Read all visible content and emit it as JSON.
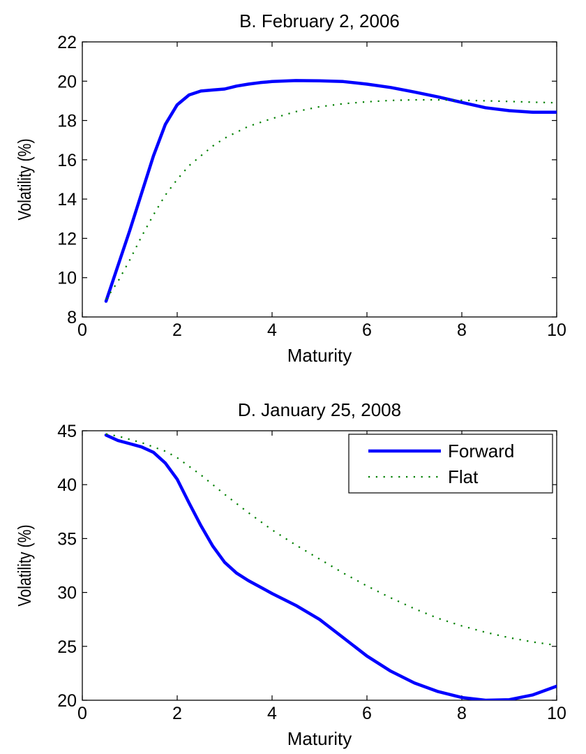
{
  "chart_data": [
    {
      "type": "line",
      "title": "B. February 2, 2006",
      "xlabel": "Maturity",
      "ylabel": "Volatility (%)",
      "xlim": [
        0,
        10
      ],
      "ylim": [
        8,
        22
      ],
      "xticks": [
        0,
        2,
        4,
        6,
        8,
        10
      ],
      "yticks": [
        8,
        10,
        12,
        14,
        16,
        18,
        20,
        22
      ],
      "grid": false,
      "legend": null,
      "series": [
        {
          "style": "solid",
          "color": "#0000ff",
          "x": [
            0.5,
            0.75,
            1.0,
            1.25,
            1.5,
            1.75,
            2.0,
            2.25,
            2.5,
            2.75,
            3.0,
            3.25,
            3.5,
            3.75,
            4.0,
            4.5,
            5.0,
            5.5,
            6.0,
            6.5,
            7.0,
            7.5,
            8.0,
            8.5,
            9.0,
            9.5,
            10.0
          ],
          "y": [
            8.8,
            10.6,
            12.4,
            14.3,
            16.2,
            17.8,
            18.8,
            19.3,
            19.5,
            19.55,
            19.6,
            19.75,
            19.85,
            19.93,
            19.98,
            20.03,
            20.02,
            19.98,
            19.85,
            19.68,
            19.45,
            19.2,
            18.92,
            18.65,
            18.5,
            18.42,
            18.42
          ]
        },
        {
          "style": "dotted",
          "color": "#008000",
          "x": [
            0.5,
            0.75,
            1.0,
            1.25,
            1.5,
            1.75,
            2.0,
            2.25,
            2.5,
            2.75,
            3.0,
            3.5,
            4.0,
            4.5,
            5.0,
            5.5,
            6.0,
            6.5,
            7.0,
            7.5,
            8.0,
            8.5,
            9.0,
            9.5,
            10.0
          ],
          "y": [
            8.9,
            9.8,
            10.9,
            12.1,
            13.2,
            14.2,
            15.0,
            15.7,
            16.2,
            16.7,
            17.1,
            17.7,
            18.1,
            18.45,
            18.7,
            18.85,
            18.95,
            19.02,
            19.05,
            19.05,
            19.03,
            19.0,
            18.97,
            18.93,
            18.9
          ]
        }
      ]
    },
    {
      "type": "line",
      "title": "D. January 25, 2008",
      "xlabel": "Maturity",
      "ylabel": "Volatility (%)",
      "xlim": [
        0,
        10
      ],
      "ylim": [
        20,
        45
      ],
      "xticks": [
        0,
        2,
        4,
        6,
        8,
        10
      ],
      "yticks": [
        20,
        25,
        30,
        35,
        40,
        45
      ],
      "grid": false,
      "legend": "top-right",
      "series": [
        {
          "name": "Forward",
          "style": "solid",
          "color": "#0000ff",
          "x": [
            0.5,
            0.75,
            1.0,
            1.25,
            1.5,
            1.75,
            2.0,
            2.25,
            2.5,
            2.75,
            3.0,
            3.25,
            3.5,
            4.0,
            4.5,
            5.0,
            5.5,
            6.0,
            6.5,
            7.0,
            7.5,
            8.0,
            8.5,
            9.0,
            9.5,
            10.0
          ],
          "y": [
            44.6,
            44.1,
            43.8,
            43.5,
            43.0,
            42.0,
            40.5,
            38.3,
            36.2,
            34.3,
            32.8,
            31.8,
            31.1,
            29.9,
            28.8,
            27.5,
            25.8,
            24.1,
            22.7,
            21.6,
            20.8,
            20.25,
            20.0,
            20.05,
            20.5,
            21.3
          ]
        },
        {
          "name": "Flat",
          "style": "dotted",
          "color": "#008000",
          "x": [
            0.5,
            0.75,
            1.0,
            1.25,
            1.5,
            1.75,
            2.0,
            2.5,
            3.0,
            3.5,
            4.0,
            4.5,
            5.0,
            5.5,
            6.0,
            6.5,
            7.0,
            7.5,
            8.0,
            8.5,
            9.0,
            9.5,
            10.0
          ],
          "y": [
            44.7,
            44.5,
            44.2,
            43.9,
            43.5,
            43.1,
            42.5,
            40.9,
            39.1,
            37.4,
            35.8,
            34.4,
            33.1,
            31.8,
            30.6,
            29.5,
            28.5,
            27.6,
            26.9,
            26.3,
            25.8,
            25.4,
            25.1
          ]
        }
      ]
    }
  ]
}
